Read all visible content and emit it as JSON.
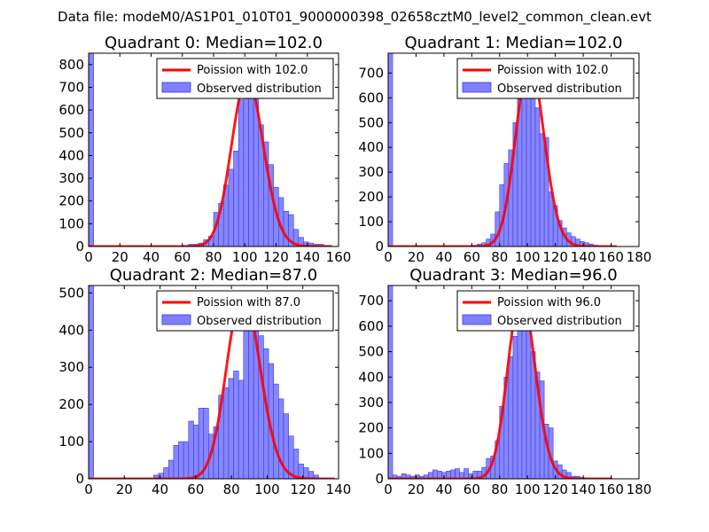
{
  "figure_title": "Data file: modeM0/AS1P01_010T01_9000000398_02658cztM0_level2_common_clean.evt",
  "colors": {
    "bars": "#7f7fff",
    "bar_edge": "#3a3ae0",
    "poisson": "#ff0000",
    "frame": "#000000",
    "background": "#ffffff"
  },
  "chart_data": [
    {
      "type": "bar",
      "title": "Quadrant 0: Median=102.0",
      "xlim": [
        0,
        160
      ],
      "ylim": [
        0,
        850
      ],
      "xticks": [
        0,
        20,
        40,
        60,
        80,
        100,
        120,
        140,
        160
      ],
      "yticks": [
        0,
        100,
        200,
        300,
        400,
        500,
        600,
        700,
        800
      ],
      "legend": [
        "Poission with 102.0",
        "Observed distribution"
      ],
      "legend_location": "top-right",
      "bin_width": 3.2,
      "histogram": [
        {
          "x": 0,
          "y": 850
        },
        {
          "x": 60.8,
          "y": 5
        },
        {
          "x": 64,
          "y": 10
        },
        {
          "x": 67.2,
          "y": 10
        },
        {
          "x": 70.4,
          "y": 15
        },
        {
          "x": 73.6,
          "y": 30
        },
        {
          "x": 76.8,
          "y": 45
        },
        {
          "x": 80,
          "y": 150
        },
        {
          "x": 83.2,
          "y": 190
        },
        {
          "x": 86.4,
          "y": 270
        },
        {
          "x": 89.6,
          "y": 340
        },
        {
          "x": 92.8,
          "y": 420
        },
        {
          "x": 96,
          "y": 645
        },
        {
          "x": 99.2,
          "y": 690
        },
        {
          "x": 102.4,
          "y": 810
        },
        {
          "x": 105.6,
          "y": 720
        },
        {
          "x": 108.8,
          "y": 535
        },
        {
          "x": 112,
          "y": 460
        },
        {
          "x": 115.2,
          "y": 360
        },
        {
          "x": 118.4,
          "y": 260
        },
        {
          "x": 121.6,
          "y": 215
        },
        {
          "x": 124.8,
          "y": 155
        },
        {
          "x": 128,
          "y": 140
        },
        {
          "x": 131.2,
          "y": 75
        },
        {
          "x": 134.4,
          "y": 40
        },
        {
          "x": 137.6,
          "y": 20
        },
        {
          "x": 140.8,
          "y": 15
        },
        {
          "x": 144,
          "y": 10
        },
        {
          "x": 147.2,
          "y": 10
        },
        {
          "x": 150.4,
          "y": 5
        }
      ],
      "poisson_mean": 102.0,
      "poisson_scale": 740,
      "curve_xmax": 156
    },
    {
      "type": "bar",
      "title": "Quadrant 1: Median=102.0",
      "xlim": [
        0,
        180
      ],
      "ylim": [
        0,
        780
      ],
      "xticks": [
        0,
        20,
        40,
        60,
        80,
        100,
        120,
        140,
        160,
        180
      ],
      "yticks": [
        0,
        100,
        200,
        300,
        400,
        500,
        600,
        700
      ],
      "legend": [
        "Poission with 102.0",
        "Observed distribution"
      ],
      "legend_location": "top-right",
      "bin_width": 3.2,
      "histogram": [
        {
          "x": 0,
          "y": 780
        },
        {
          "x": 60.8,
          "y": 5
        },
        {
          "x": 64,
          "y": 10
        },
        {
          "x": 67.2,
          "y": 15
        },
        {
          "x": 70.4,
          "y": 30
        },
        {
          "x": 73.6,
          "y": 50
        },
        {
          "x": 76.8,
          "y": 140
        },
        {
          "x": 80,
          "y": 250
        },
        {
          "x": 83.2,
          "y": 335
        },
        {
          "x": 86.4,
          "y": 390
        },
        {
          "x": 89.6,
          "y": 500
        },
        {
          "x": 92.8,
          "y": 595
        },
        {
          "x": 96,
          "y": 600
        },
        {
          "x": 99.2,
          "y": 680
        },
        {
          "x": 102.4,
          "y": 655
        },
        {
          "x": 105.6,
          "y": 560
        },
        {
          "x": 108.8,
          "y": 455
        },
        {
          "x": 112,
          "y": 440
        },
        {
          "x": 115.2,
          "y": 220
        },
        {
          "x": 118.4,
          "y": 165
        },
        {
          "x": 121.6,
          "y": 105
        },
        {
          "x": 124.8,
          "y": 75
        },
        {
          "x": 128,
          "y": 55
        },
        {
          "x": 131.2,
          "y": 40
        },
        {
          "x": 134.4,
          "y": 30
        },
        {
          "x": 137.6,
          "y": 20
        },
        {
          "x": 140.8,
          "y": 15
        },
        {
          "x": 144,
          "y": 10
        },
        {
          "x": 147.2,
          "y": 5
        }
      ],
      "poisson_mean": 102.0,
      "poisson_scale": 745,
      "curve_xmax": 164
    },
    {
      "type": "bar",
      "title": "Quadrant 2: Median=87.0",
      "xlim": [
        0,
        140
      ],
      "ylim": [
        0,
        520
      ],
      "xticks": [
        0,
        20,
        40,
        60,
        80,
        100,
        120,
        140
      ],
      "yticks": [
        0,
        100,
        200,
        300,
        400,
        500
      ],
      "legend": [
        "Poission with 87.0",
        "Observed distribution"
      ],
      "legend_location": "top-right",
      "bin_width": 2.8,
      "histogram": [
        {
          "x": 0,
          "y": 520
        },
        {
          "x": 36.4,
          "y": 10
        },
        {
          "x": 39.2,
          "y": 15
        },
        {
          "x": 42,
          "y": 30
        },
        {
          "x": 44.8,
          "y": 50
        },
        {
          "x": 47.6,
          "y": 90
        },
        {
          "x": 50.4,
          "y": 100
        },
        {
          "x": 53.2,
          "y": 100
        },
        {
          "x": 56,
          "y": 155
        },
        {
          "x": 58.8,
          "y": 145
        },
        {
          "x": 61.6,
          "y": 190
        },
        {
          "x": 64.4,
          "y": 190
        },
        {
          "x": 67.2,
          "y": 120
        },
        {
          "x": 70,
          "y": 140
        },
        {
          "x": 72.8,
          "y": 225
        },
        {
          "x": 75.6,
          "y": 245
        },
        {
          "x": 78.4,
          "y": 270
        },
        {
          "x": 81.2,
          "y": 290
        },
        {
          "x": 84,
          "y": 265
        },
        {
          "x": 86.8,
          "y": 485
        },
        {
          "x": 89.6,
          "y": 490
        },
        {
          "x": 92.4,
          "y": 400
        },
        {
          "x": 95.2,
          "y": 385
        },
        {
          "x": 98,
          "y": 350
        },
        {
          "x": 100.8,
          "y": 310
        },
        {
          "x": 103.6,
          "y": 255
        },
        {
          "x": 106.4,
          "y": 215
        },
        {
          "x": 109.2,
          "y": 175
        },
        {
          "x": 112,
          "y": 115
        },
        {
          "x": 114.8,
          "y": 80
        },
        {
          "x": 117.6,
          "y": 40
        },
        {
          "x": 120.4,
          "y": 30
        },
        {
          "x": 123.2,
          "y": 20
        },
        {
          "x": 126,
          "y": 10
        }
      ],
      "poisson_mean": 87.0,
      "poisson_scale": 500,
      "curve_xmax": 138
    },
    {
      "type": "bar",
      "title": "Quadrant 3: Median=96.0",
      "xlim": [
        0,
        180
      ],
      "ylim": [
        0,
        760
      ],
      "xticks": [
        0,
        20,
        40,
        60,
        80,
        100,
        120,
        140,
        160,
        180
      ],
      "yticks": [
        0,
        100,
        200,
        300,
        400,
        500,
        600,
        700
      ],
      "legend": [
        "Poission with 96.0",
        "Observed distribution"
      ],
      "legend_location": "top-right",
      "bin_width": 3.2,
      "histogram": [
        {
          "x": 0,
          "y": 760
        },
        {
          "x": 3.2,
          "y": 15
        },
        {
          "x": 6.4,
          "y": 10
        },
        {
          "x": 9.6,
          "y": 20
        },
        {
          "x": 12.8,
          "y": 15
        },
        {
          "x": 16,
          "y": 10
        },
        {
          "x": 19.2,
          "y": 15
        },
        {
          "x": 22.4,
          "y": 10
        },
        {
          "x": 25.6,
          "y": 15
        },
        {
          "x": 28.8,
          "y": 25
        },
        {
          "x": 32,
          "y": 35
        },
        {
          "x": 35.2,
          "y": 30
        },
        {
          "x": 38.4,
          "y": 25
        },
        {
          "x": 41.6,
          "y": 30
        },
        {
          "x": 44.8,
          "y": 35
        },
        {
          "x": 48,
          "y": 40
        },
        {
          "x": 51.2,
          "y": 25
        },
        {
          "x": 54.4,
          "y": 40
        },
        {
          "x": 57.6,
          "y": 20
        },
        {
          "x": 60.8,
          "y": 30
        },
        {
          "x": 64,
          "y": 30
        },
        {
          "x": 67.2,
          "y": 45
        },
        {
          "x": 70.4,
          "y": 80
        },
        {
          "x": 73.6,
          "y": 90
        },
        {
          "x": 76.8,
          "y": 150
        },
        {
          "x": 80,
          "y": 285
        },
        {
          "x": 83.2,
          "y": 400
        },
        {
          "x": 86.4,
          "y": 480
        },
        {
          "x": 89.6,
          "y": 560
        },
        {
          "x": 92.8,
          "y": 700
        },
        {
          "x": 96,
          "y": 590
        },
        {
          "x": 99.2,
          "y": 605
        },
        {
          "x": 102.4,
          "y": 500
        },
        {
          "x": 105.6,
          "y": 420
        },
        {
          "x": 108.8,
          "y": 385
        },
        {
          "x": 112,
          "y": 215
        },
        {
          "x": 115.2,
          "y": 200
        },
        {
          "x": 118.4,
          "y": 70
        },
        {
          "x": 121.6,
          "y": 55
        },
        {
          "x": 124.8,
          "y": 35
        },
        {
          "x": 128,
          "y": 25
        },
        {
          "x": 131.2,
          "y": 10
        },
        {
          "x": 134.4,
          "y": 10
        },
        {
          "x": 137.6,
          "y": 5
        }
      ],
      "poisson_mean": 96.0,
      "poisson_scale": 725,
      "curve_xmax": 161
    }
  ]
}
